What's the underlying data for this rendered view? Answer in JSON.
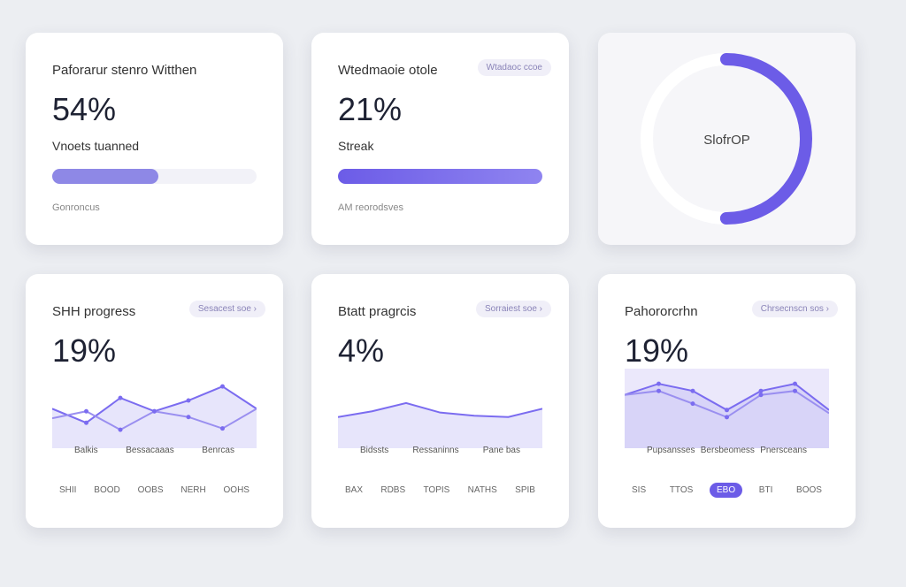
{
  "cards": [
    {
      "title": "Paforarur stenro Witthen",
      "value": "54%",
      "subtitle": "Vnoets tuanned",
      "progress": 52,
      "footer": "Gonroncus"
    },
    {
      "title": "Wtedmaoie otole",
      "badge": "Wtadaoc ccoe",
      "value": "21%",
      "subtitle": "Streak",
      "progress": 100,
      "footer": "AM reorodsves"
    },
    {
      "center_label": "SlofrOP",
      "ring": 50
    },
    {
      "title": "SHH progress",
      "badge": "Sesacest soe ›",
      "value": "19%",
      "chart": {
        "series": [
          {
            "values": [
              62,
              40,
              79,
              58,
              75,
              97,
              62
            ]
          },
          {
            "values": [
              47,
              58,
              29,
              58,
              49,
              31,
              62
            ]
          }
        ],
        "labels": [
          "Balkis",
          "Bessacaaas",
          "Benrcas"
        ]
      },
      "tabs": [
        "SHII",
        "BOOD",
        "OOBS",
        "NERH",
        "OOHS"
      ]
    },
    {
      "title": "Btatt pragrcis",
      "badge": "Sorraiest soe ›",
      "value": "4%",
      "chart": {
        "series": [
          {
            "values": [
              49,
              58,
              71,
              56,
              51,
              49,
              62
            ]
          }
        ],
        "labels": [
          "Bidssts",
          "Ressaninns",
          "Pane bas"
        ]
      },
      "tabs": [
        "BAX",
        "RDBS",
        "TOPIS",
        "NATHS",
        "SPIB"
      ]
    },
    {
      "title": "Pahororcrhn",
      "badge": "Chrsecnscn sos ›",
      "value": "19%",
      "chart": {
        "series": [
          {
            "values": [
              67,
              81,
              72,
              48,
              72,
              81,
              48
            ]
          },
          {
            "values": [
              67,
              72,
              56,
              39,
              67,
              72,
              44
            ]
          }
        ],
        "labels": [
          "Pupsansses",
          "Bersbeomess",
          "Pnersceans"
        ],
        "panel": true
      },
      "tabs": [
        "SIS",
        "TTOS",
        "EBO",
        "BTI",
        "BOOS"
      ],
      "active_tab": 2
    }
  ]
}
